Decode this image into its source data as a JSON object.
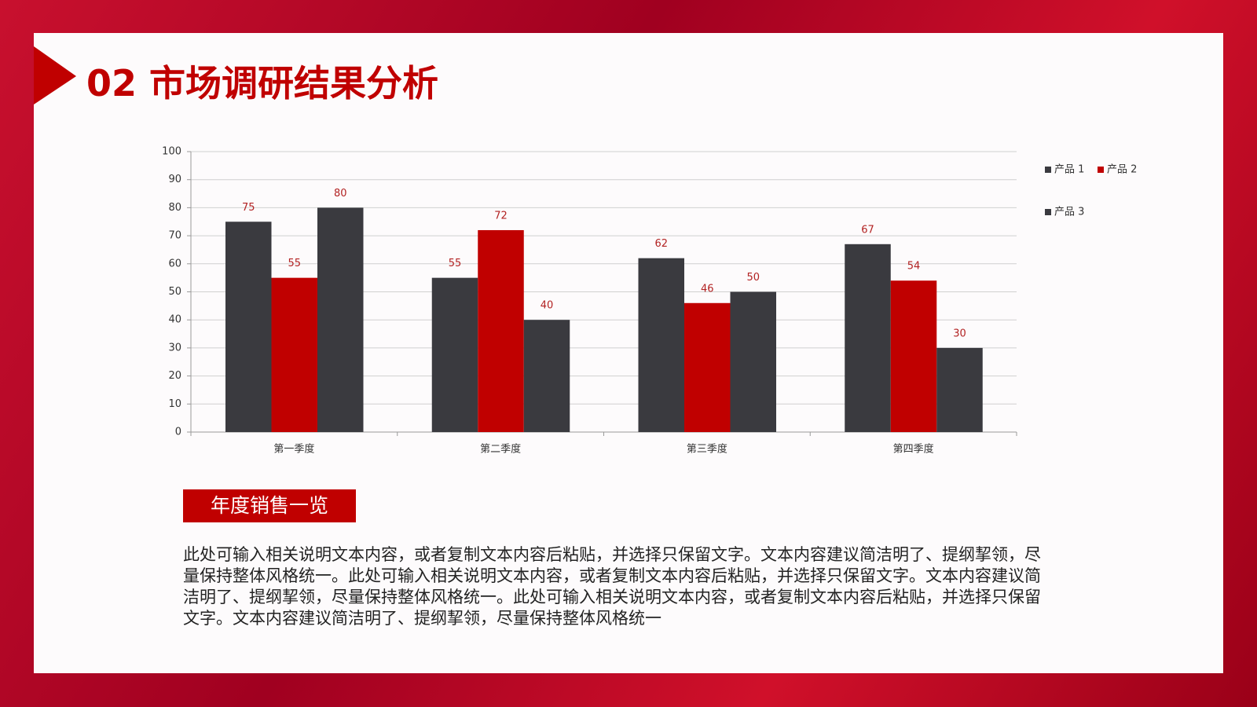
{
  "slide_title": "02 市场调研结果分析",
  "section_label": "年度销售一览",
  "body": "此处可输入相关说明文本内容，或者复制文本内容后粘贴，并选择只保留文字。文本内容建议简洁明了、提纲挈领，尽量保持整体风格统一。此处可输入相关说明文本内容，或者复制文本内容后粘贴，并选择只保留文字。文本内容建议简洁明了、提纲挈领，尽量保持整体风格统一。此处可输入相关说明文本内容，或者复制文本内容后粘贴，并选择只保留文字。文本内容建议简洁明了、提纲挈领，尽量保持整体风格统一",
  "chart_data": {
    "type": "bar",
    "categories": [
      "第一季度",
      "第二季度",
      "第三季度",
      "第四季度"
    ],
    "series": [
      {
        "name": "产品 1",
        "color": "#3a3a3f",
        "values": [
          75,
          55,
          62,
          67
        ]
      },
      {
        "name": "产品 2",
        "color": "#c00000",
        "values": [
          55,
          72,
          46,
          54
        ]
      },
      {
        "name": "产品 3",
        "color": "#3a3a3f",
        "values": [
          80,
          40,
          50,
          30
        ]
      }
    ],
    "ylim": [
      0,
      100
    ],
    "yticks": [
      0,
      10,
      20,
      30,
      40,
      50,
      60,
      70,
      80,
      90,
      100
    ],
    "grid": true,
    "legend": "right"
  }
}
